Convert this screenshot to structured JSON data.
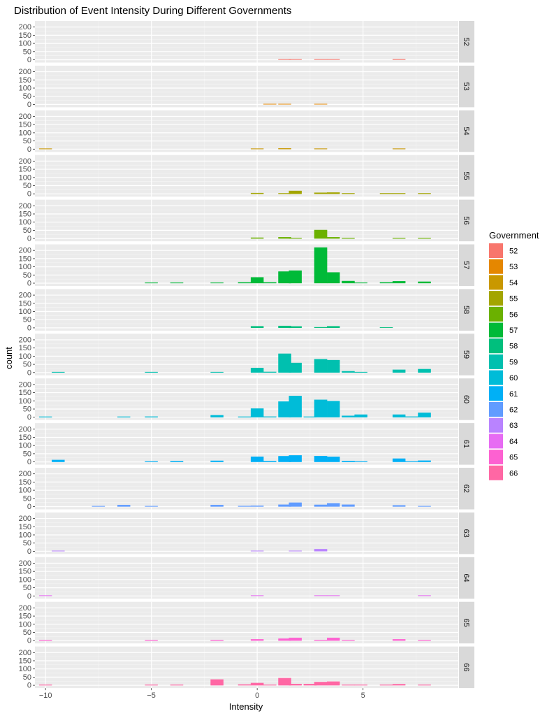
{
  "chart_data": {
    "type": "bar",
    "subtype": "faceted-histogram",
    "title": "Distribution of Event Intensity During Different Governments",
    "xlabel": "Intensity",
    "ylabel": "count",
    "legend_title": "Government",
    "legend_position": "right",
    "xlim": [
      -10.5,
      9.5
    ],
    "ylim": [
      0,
      220
    ],
    "x_ticks": [
      -10,
      -5,
      0,
      5
    ],
    "x_tick_labels": [
      "−10",
      "−5",
      "0",
      "5"
    ],
    "y_ticks": [
      0,
      50,
      100,
      150,
      200
    ],
    "y_tick_labels": [
      "0",
      "50",
      "100",
      "150",
      "200"
    ],
    "bin_width": 0.6,
    "grid": true,
    "facets": [
      {
        "label": "52",
        "color": "#F8766D",
        "bars": [
          {
            "x": 1.3,
            "y": 2
          },
          {
            "x": 1.8,
            "y": 3
          },
          {
            "x": 3.0,
            "y": 2
          },
          {
            "x": 3.6,
            "y": 1
          },
          {
            "x": 6.7,
            "y": 4
          }
        ]
      },
      {
        "label": "53",
        "color": "#E58700",
        "bars": [
          {
            "x": 0.6,
            "y": 1
          },
          {
            "x": 1.3,
            "y": 1
          },
          {
            "x": 3.0,
            "y": 3
          }
        ]
      },
      {
        "label": "54",
        "color": "#C99800",
        "bars": [
          {
            "x": -10.0,
            "y": 1
          },
          {
            "x": 0.0,
            "y": 1
          },
          {
            "x": 1.3,
            "y": 5
          },
          {
            "x": 3.0,
            "y": 3
          },
          {
            "x": 6.7,
            "y": 1
          }
        ]
      },
      {
        "label": "55",
        "color": "#A3A500",
        "bars": [
          {
            "x": 0.0,
            "y": 5
          },
          {
            "x": 1.3,
            "y": 2
          },
          {
            "x": 1.8,
            "y": 18
          },
          {
            "x": 3.0,
            "y": 7
          },
          {
            "x": 3.6,
            "y": 8
          },
          {
            "x": 4.3,
            "y": 2
          },
          {
            "x": 6.1,
            "y": 2
          },
          {
            "x": 6.7,
            "y": 2
          },
          {
            "x": 7.9,
            "y": 1
          }
        ]
      },
      {
        "label": "56",
        "color": "#6BB100",
        "bars": [
          {
            "x": 0.0,
            "y": 5
          },
          {
            "x": 1.3,
            "y": 8
          },
          {
            "x": 1.8,
            "y": 2
          },
          {
            "x": 3.0,
            "y": 52
          },
          {
            "x": 3.6,
            "y": 8
          },
          {
            "x": 4.3,
            "y": 4
          },
          {
            "x": 6.7,
            "y": 3
          },
          {
            "x": 7.9,
            "y": 1
          }
        ]
      },
      {
        "label": "57",
        "color": "#00BA38",
        "bars": [
          {
            "x": -5.0,
            "y": 3
          },
          {
            "x": -3.8,
            "y": 2
          },
          {
            "x": -1.9,
            "y": 2
          },
          {
            "x": -0.6,
            "y": 5
          },
          {
            "x": 0.0,
            "y": 36
          },
          {
            "x": 0.6,
            "y": 5
          },
          {
            "x": 1.3,
            "y": 71
          },
          {
            "x": 1.8,
            "y": 77
          },
          {
            "x": 3.0,
            "y": 218
          },
          {
            "x": 3.6,
            "y": 66
          },
          {
            "x": 4.3,
            "y": 13
          },
          {
            "x": 4.9,
            "y": 2
          },
          {
            "x": 6.1,
            "y": 5
          },
          {
            "x": 6.7,
            "y": 12
          },
          {
            "x": 7.9,
            "y": 9
          }
        ]
      },
      {
        "label": "58",
        "color": "#00BF7D",
        "bars": [
          {
            "x": 0.0,
            "y": 10
          },
          {
            "x": 1.3,
            "y": 12
          },
          {
            "x": 1.8,
            "y": 9
          },
          {
            "x": 3.0,
            "y": 4
          },
          {
            "x": 3.6,
            "y": 10
          },
          {
            "x": 6.1,
            "y": 1
          }
        ]
      },
      {
        "label": "59",
        "color": "#00C0AF",
        "bars": [
          {
            "x": -9.4,
            "y": 1
          },
          {
            "x": -5.0,
            "y": 3
          },
          {
            "x": -1.9,
            "y": 1
          },
          {
            "x": 0.0,
            "y": 28
          },
          {
            "x": 0.6,
            "y": 4
          },
          {
            "x": 1.3,
            "y": 115
          },
          {
            "x": 1.8,
            "y": 59
          },
          {
            "x": 3.0,
            "y": 82
          },
          {
            "x": 3.6,
            "y": 76
          },
          {
            "x": 4.3,
            "y": 8
          },
          {
            "x": 4.9,
            "y": 2
          },
          {
            "x": 6.7,
            "y": 17
          },
          {
            "x": 7.9,
            "y": 21
          }
        ]
      },
      {
        "label": "60",
        "color": "#00BCD8",
        "bars": [
          {
            "x": -10.0,
            "y": 1
          },
          {
            "x": -6.3,
            "y": 2
          },
          {
            "x": -5.0,
            "y": 4
          },
          {
            "x": -1.9,
            "y": 12
          },
          {
            "x": -0.6,
            "y": 2
          },
          {
            "x": 0.0,
            "y": 53
          },
          {
            "x": 0.6,
            "y": 4
          },
          {
            "x": 1.3,
            "y": 96
          },
          {
            "x": 1.8,
            "y": 130
          },
          {
            "x": 2.5,
            "y": 2
          },
          {
            "x": 3.0,
            "y": 107
          },
          {
            "x": 3.6,
            "y": 99
          },
          {
            "x": 4.3,
            "y": 9
          },
          {
            "x": 4.9,
            "y": 16
          },
          {
            "x": 6.7,
            "y": 16
          },
          {
            "x": 7.3,
            "y": 4
          },
          {
            "x": 7.9,
            "y": 27
          }
        ]
      },
      {
        "label": "61",
        "color": "#00B0F6",
        "bars": [
          {
            "x": -9.4,
            "y": 12
          },
          {
            "x": -5.0,
            "y": 2
          },
          {
            "x": -3.8,
            "y": 5
          },
          {
            "x": -1.9,
            "y": 7
          },
          {
            "x": 0.0,
            "y": 32
          },
          {
            "x": 0.6,
            "y": 5
          },
          {
            "x": 1.3,
            "y": 35
          },
          {
            "x": 1.8,
            "y": 40
          },
          {
            "x": 3.0,
            "y": 36
          },
          {
            "x": 3.6,
            "y": 31
          },
          {
            "x": 4.3,
            "y": 6
          },
          {
            "x": 4.9,
            "y": 2
          },
          {
            "x": 6.7,
            "y": 20
          },
          {
            "x": 7.3,
            "y": 2
          },
          {
            "x": 7.9,
            "y": 8
          }
        ]
      },
      {
        "label": "62",
        "color": "#619CFF",
        "bars": [
          {
            "x": -7.5,
            "y": 1
          },
          {
            "x": -6.3,
            "y": 10
          },
          {
            "x": -5.0,
            "y": 1
          },
          {
            "x": -1.9,
            "y": 10
          },
          {
            "x": -0.6,
            "y": 4
          },
          {
            "x": 0.0,
            "y": 5
          },
          {
            "x": 1.3,
            "y": 12
          },
          {
            "x": 1.8,
            "y": 24
          },
          {
            "x": 3.0,
            "y": 11
          },
          {
            "x": 3.6,
            "y": 20
          },
          {
            "x": 4.3,
            "y": 12
          },
          {
            "x": 6.7,
            "y": 8
          },
          {
            "x": 7.9,
            "y": 3
          }
        ]
      },
      {
        "label": "63",
        "color": "#B983FF",
        "bars": [
          {
            "x": -9.4,
            "y": 1
          },
          {
            "x": 0.0,
            "y": 1
          },
          {
            "x": 1.8,
            "y": 1
          },
          {
            "x": 3.0,
            "y": 13
          }
        ]
      },
      {
        "label": "64",
        "color": "#E76BF3",
        "bars": [
          {
            "x": -10.0,
            "y": 1
          },
          {
            "x": 0.0,
            "y": 2
          },
          {
            "x": 3.0,
            "y": 1
          },
          {
            "x": 3.6,
            "y": 3
          },
          {
            "x": 7.9,
            "y": 3
          }
        ]
      },
      {
        "label": "65",
        "color": "#FD61D1",
        "bars": [
          {
            "x": -10.0,
            "y": 1
          },
          {
            "x": -5.0,
            "y": 1
          },
          {
            "x": -1.9,
            "y": 4
          },
          {
            "x": 0.0,
            "y": 8
          },
          {
            "x": 1.3,
            "y": 12
          },
          {
            "x": 1.8,
            "y": 17
          },
          {
            "x": 3.0,
            "y": 4
          },
          {
            "x": 3.6,
            "y": 17
          },
          {
            "x": 4.3,
            "y": 2
          },
          {
            "x": 6.7,
            "y": 8
          },
          {
            "x": 7.9,
            "y": 2
          }
        ]
      },
      {
        "label": "66",
        "color": "#FF67A4",
        "bars": [
          {
            "x": -10.0,
            "y": 1
          },
          {
            "x": -5.0,
            "y": 2
          },
          {
            "x": -3.8,
            "y": 1
          },
          {
            "x": -1.9,
            "y": 36
          },
          {
            "x": -0.6,
            "y": 5
          },
          {
            "x": 0.0,
            "y": 14
          },
          {
            "x": 0.6,
            "y": 2
          },
          {
            "x": 1.3,
            "y": 44
          },
          {
            "x": 1.8,
            "y": 8
          },
          {
            "x": 2.5,
            "y": 8
          },
          {
            "x": 3.0,
            "y": 20
          },
          {
            "x": 3.6,
            "y": 23
          },
          {
            "x": 4.3,
            "y": 3
          },
          {
            "x": 4.9,
            "y": 2
          },
          {
            "x": 6.1,
            "y": 3
          },
          {
            "x": 6.7,
            "y": 7
          },
          {
            "x": 7.9,
            "y": 3
          }
        ]
      }
    ]
  }
}
